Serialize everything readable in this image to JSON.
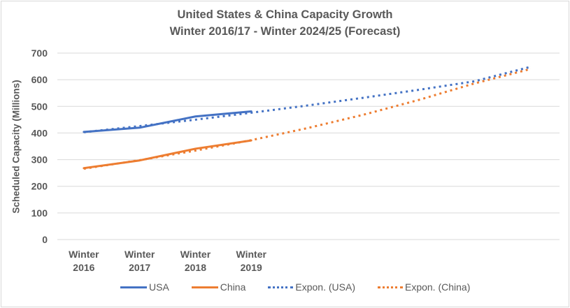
{
  "chart_data": {
    "type": "line",
    "title": "United States & China Capacity Growth",
    "subtitle": "Winter 2016/17 - Winter 2024/25 (Forecast)",
    "xlabel": "",
    "ylabel": "Scheduled Capacity (Millions)",
    "ylim": [
      0,
      700
    ],
    "yticks": [
      "0",
      "100",
      "200",
      "300",
      "400",
      "500",
      "600",
      "700"
    ],
    "categories": [
      "Winter 2016",
      "Winter 2017",
      "Winter 2018",
      "Winter 2019",
      "",
      "",
      "",
      "",
      ""
    ],
    "category_labels": [
      {
        "line1": "Winter",
        "line2": "2016"
      },
      {
        "line1": "Winter",
        "line2": "2017"
      },
      {
        "line1": "Winter",
        "line2": "2018"
      },
      {
        "line1": "Winter",
        "line2": "2019"
      }
    ],
    "grid": true,
    "legend_position": "bottom",
    "series": [
      {
        "name": "USA",
        "style": "solid",
        "color": "#4472c4",
        "values": [
          404,
          420,
          462,
          481
        ]
      },
      {
        "name": "China",
        "style": "solid",
        "color": "#ed7d31",
        "values": [
          268,
          297,
          341,
          372
        ]
      },
      {
        "name": "Expon. (USA)",
        "style": "dotted",
        "color": "#4472c4",
        "values": [
          403,
          426,
          450,
          476,
          503,
          532,
          562,
          594,
          648
        ]
      },
      {
        "name": "Expon. (China)",
        "style": "dotted",
        "color": "#ed7d31",
        "values": [
          266,
          298,
          334,
          373,
          418,
          468,
          524,
          586,
          640
        ]
      }
    ]
  }
}
